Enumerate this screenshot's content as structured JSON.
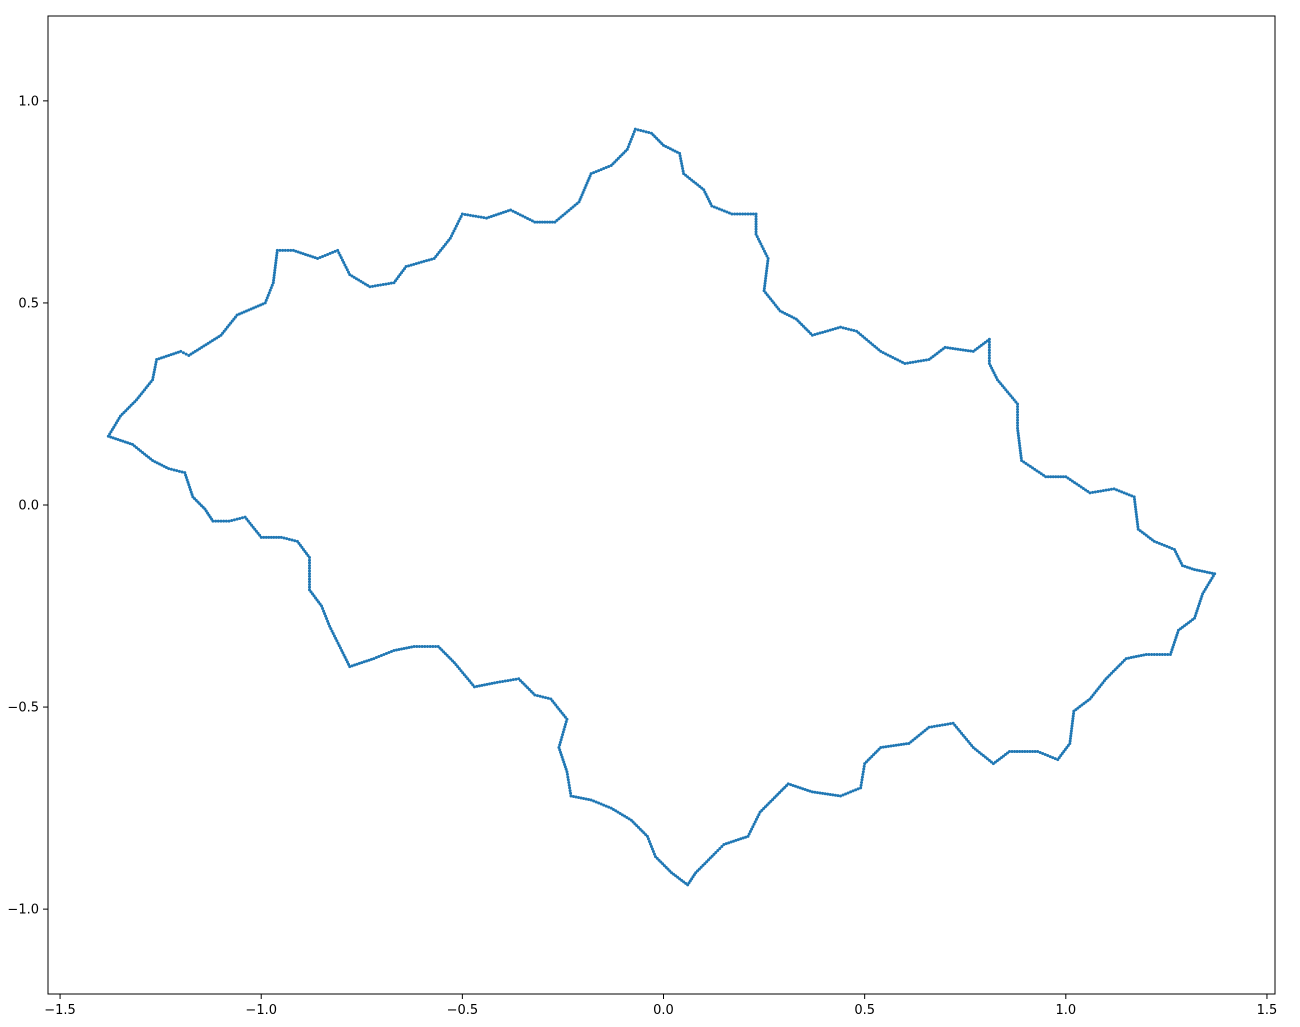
{
  "chart_data": {
    "type": "scatter",
    "title": "",
    "xlabel": "",
    "ylabel": "",
    "xlim": [
      -1.53,
      1.52
    ],
    "ylim": [
      -1.21,
      1.21
    ],
    "grid": false,
    "legend": "none",
    "marker_color": "#1f77b4",
    "x_ticks": [
      {
        "value": -1.5,
        "label": "−1.5"
      },
      {
        "value": -1.0,
        "label": "−1.0"
      },
      {
        "value": -0.5,
        "label": "−0.5"
      },
      {
        "value": 0.0,
        "label": "0.0"
      },
      {
        "value": 0.5,
        "label": "0.5"
      },
      {
        "value": 1.0,
        "label": "1.0"
      },
      {
        "value": 1.5,
        "label": "1.5"
      }
    ],
    "y_ticks": [
      {
        "value": -1.0,
        "label": "−1.0"
      },
      {
        "value": -0.5,
        "label": "−0.5"
      },
      {
        "value": 0.0,
        "label": "0.0"
      },
      {
        "value": 0.5,
        "label": "0.5"
      },
      {
        "value": 1.0,
        "label": "1.0"
      }
    ],
    "series": [
      {
        "points": [
          [
            -1.38,
            0.17
          ],
          [
            -1.35,
            0.22
          ],
          [
            -1.31,
            0.26
          ],
          [
            -1.27,
            0.31
          ],
          [
            -1.26,
            0.36
          ],
          [
            -1.2,
            0.38
          ],
          [
            -1.18,
            0.37
          ],
          [
            -1.1,
            0.42
          ],
          [
            -1.06,
            0.47
          ],
          [
            -0.99,
            0.5
          ],
          [
            -0.97,
            0.55
          ],
          [
            -0.96,
            0.63
          ],
          [
            -0.92,
            0.63
          ],
          [
            -0.86,
            0.61
          ],
          [
            -0.81,
            0.63
          ],
          [
            -0.78,
            0.57
          ],
          [
            -0.73,
            0.54
          ],
          [
            -0.67,
            0.55
          ],
          [
            -0.64,
            0.59
          ],
          [
            -0.57,
            0.61
          ],
          [
            -0.53,
            0.66
          ],
          [
            -0.5,
            0.72
          ],
          [
            -0.44,
            0.71
          ],
          [
            -0.38,
            0.73
          ],
          [
            -0.32,
            0.7
          ],
          [
            -0.27,
            0.7
          ],
          [
            -0.21,
            0.75
          ],
          [
            -0.18,
            0.82
          ],
          [
            -0.13,
            0.84
          ],
          [
            -0.09,
            0.88
          ],
          [
            -0.07,
            0.93
          ],
          [
            -0.03,
            0.92
          ],
          [
            0.0,
            0.89
          ],
          [
            0.04,
            0.87
          ],
          [
            0.05,
            0.82
          ],
          [
            0.1,
            0.78
          ],
          [
            0.12,
            0.74
          ],
          [
            0.17,
            0.72
          ],
          [
            0.23,
            0.72
          ],
          [
            0.23,
            0.67
          ],
          [
            0.26,
            0.61
          ],
          [
            0.25,
            0.53
          ],
          [
            0.29,
            0.48
          ],
          [
            0.33,
            0.46
          ],
          [
            0.37,
            0.42
          ],
          [
            0.44,
            0.44
          ],
          [
            0.48,
            0.43
          ],
          [
            0.54,
            0.38
          ],
          [
            0.6,
            0.35
          ],
          [
            0.66,
            0.36
          ],
          [
            0.7,
            0.39
          ],
          [
            0.77,
            0.38
          ],
          [
            0.81,
            0.41
          ],
          [
            0.81,
            0.35
          ],
          [
            0.83,
            0.31
          ],
          [
            0.88,
            0.25
          ],
          [
            0.88,
            0.19
          ],
          [
            0.89,
            0.11
          ],
          [
            0.95,
            0.07
          ],
          [
            1.0,
            0.07
          ],
          [
            1.06,
            0.03
          ],
          [
            1.12,
            0.04
          ],
          [
            1.17,
            0.02
          ],
          [
            1.18,
            -0.06
          ],
          [
            1.22,
            -0.09
          ],
          [
            1.27,
            -0.11
          ],
          [
            1.29,
            -0.15
          ],
          [
            1.32,
            -0.16
          ],
          [
            1.37,
            -0.17
          ],
          [
            1.34,
            -0.22
          ],
          [
            1.32,
            -0.28
          ],
          [
            1.28,
            -0.31
          ],
          [
            1.26,
            -0.37
          ],
          [
            1.2,
            -0.37
          ],
          [
            1.15,
            -0.38
          ],
          [
            1.1,
            -0.43
          ],
          [
            1.06,
            -0.48
          ],
          [
            1.02,
            -0.51
          ],
          [
            1.01,
            -0.59
          ],
          [
            0.98,
            -0.63
          ],
          [
            0.93,
            -0.61
          ],
          [
            0.86,
            -0.61
          ],
          [
            0.82,
            -0.64
          ],
          [
            0.77,
            -0.6
          ],
          [
            0.72,
            -0.54
          ],
          [
            0.66,
            -0.55
          ],
          [
            0.61,
            -0.59
          ],
          [
            0.54,
            -0.6
          ],
          [
            0.5,
            -0.64
          ],
          [
            0.49,
            -0.7
          ],
          [
            0.44,
            -0.72
          ],
          [
            0.37,
            -0.71
          ],
          [
            0.31,
            -0.69
          ],
          [
            0.28,
            -0.72
          ],
          [
            0.24,
            -0.76
          ],
          [
            0.21,
            -0.82
          ],
          [
            0.15,
            -0.84
          ],
          [
            0.13,
            -0.86
          ],
          [
            0.08,
            -0.91
          ],
          [
            0.06,
            -0.94
          ],
          [
            0.02,
            -0.91
          ],
          [
            -0.02,
            -0.87
          ],
          [
            -0.04,
            -0.82
          ],
          [
            -0.08,
            -0.78
          ],
          [
            -0.13,
            -0.75
          ],
          [
            -0.18,
            -0.73
          ],
          [
            -0.23,
            -0.72
          ],
          [
            -0.24,
            -0.66
          ],
          [
            -0.26,
            -0.6
          ],
          [
            -0.24,
            -0.53
          ],
          [
            -0.28,
            -0.48
          ],
          [
            -0.32,
            -0.47
          ],
          [
            -0.36,
            -0.43
          ],
          [
            -0.42,
            -0.44
          ],
          [
            -0.47,
            -0.45
          ],
          [
            -0.52,
            -0.39
          ],
          [
            -0.56,
            -0.35
          ],
          [
            -0.62,
            -0.35
          ],
          [
            -0.67,
            -0.36
          ],
          [
            -0.72,
            -0.38
          ],
          [
            -0.78,
            -0.4
          ],
          [
            -0.8,
            -0.36
          ],
          [
            -0.83,
            -0.3
          ],
          [
            -0.85,
            -0.25
          ],
          [
            -0.88,
            -0.21
          ],
          [
            -0.88,
            -0.13
          ],
          [
            -0.91,
            -0.09
          ],
          [
            -0.95,
            -0.08
          ],
          [
            -1.0,
            -0.08
          ],
          [
            -1.04,
            -0.03
          ],
          [
            -1.08,
            -0.04
          ],
          [
            -1.12,
            -0.04
          ],
          [
            -1.14,
            -0.01
          ],
          [
            -1.17,
            0.02
          ],
          [
            -1.19,
            0.08
          ],
          [
            -1.23,
            0.09
          ],
          [
            -1.27,
            0.11
          ],
          [
            -1.32,
            0.15
          ]
        ]
      }
    ]
  }
}
